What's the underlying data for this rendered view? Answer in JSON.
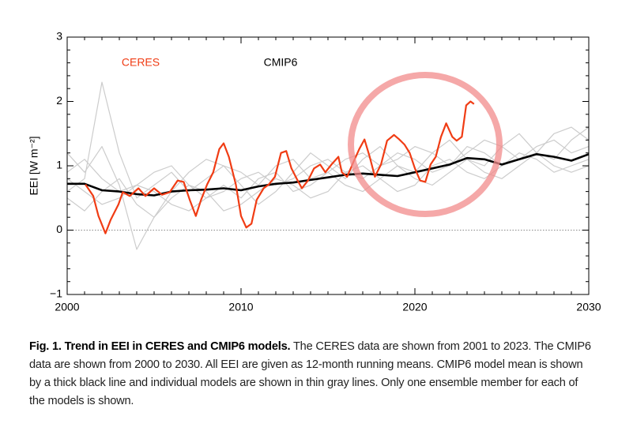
{
  "chart_data": {
    "type": "line",
    "ylabel": "EEI [W m⁻²]",
    "xlim": [
      2000,
      2030
    ],
    "xticks": [
      2000,
      2010,
      2020,
      2030
    ],
    "ylim": [
      -1,
      3
    ],
    "yticks": [
      {
        "value": -1,
        "label": "−1"
      },
      0,
      1,
      2,
      3
    ],
    "zero_line": true,
    "series": [
      {
        "name": "CERES",
        "color": "#f03c14",
        "x": [
          2001.05,
          2001.5,
          2001.8,
          2002.2,
          2002.5,
          2002.95,
          2003.2,
          2003.6,
          2004.1,
          2004.5,
          2005.0,
          2005.45,
          2005.9,
          2006.35,
          2006.7,
          2007.05,
          2007.4,
          2007.7,
          2008.05,
          2008.4,
          2008.75,
          2009.0,
          2009.3,
          2009.7,
          2010.0,
          2010.3,
          2010.6,
          2010.9,
          2011.3,
          2011.6,
          2011.95,
          2012.3,
          2012.6,
          2012.9,
          2013.2,
          2013.5,
          2013.85,
          2014.2,
          2014.55,
          2014.85,
          2015.2,
          2015.6,
          2015.8,
          2016.1,
          2016.5,
          2016.8,
          2017.1,
          2017.4,
          2017.7,
          2018.05,
          2018.4,
          2018.8,
          2019.1,
          2019.4,
          2019.7,
          2020.0,
          2020.3,
          2020.6,
          2020.9,
          2021.2,
          2021.5,
          2021.8,
          2022.15,
          2022.4,
          2022.7,
          2022.95,
          2023.2,
          2023.4
        ],
        "values": [
          0.71,
          0.53,
          0.22,
          -0.05,
          0.16,
          0.4,
          0.59,
          0.53,
          0.65,
          0.53,
          0.65,
          0.55,
          0.59,
          0.77,
          0.75,
          0.47,
          0.22,
          0.47,
          0.71,
          0.9,
          1.26,
          1.35,
          1.14,
          0.71,
          0.22,
          0.04,
          0.1,
          0.47,
          0.65,
          0.71,
          0.83,
          1.2,
          1.23,
          0.96,
          0.8,
          0.65,
          0.77,
          0.96,
          1.02,
          0.9,
          1.02,
          1.14,
          0.9,
          0.83,
          1.08,
          1.26,
          1.41,
          1.14,
          0.83,
          1.02,
          1.39,
          1.48,
          1.41,
          1.33,
          1.2,
          0.96,
          0.77,
          0.75,
          1.02,
          1.14,
          1.45,
          1.66,
          1.45,
          1.39,
          1.45,
          1.94,
          2.0,
          1.96
        ]
      },
      {
        "name": "CMIP6",
        "color": "#000000",
        "x": [
          2000,
          2001,
          2002,
          2003,
          2004,
          2005,
          2006,
          2007,
          2008,
          2009,
          2010,
          2011,
          2012,
          2013,
          2014,
          2015,
          2016,
          2017,
          2018,
          2019,
          2020,
          2021,
          2022,
          2023,
          2024,
          2025,
          2026,
          2027,
          2028,
          2029,
          2030
        ],
        "values": [
          0.72,
          0.72,
          0.62,
          0.6,
          0.56,
          0.54,
          0.6,
          0.62,
          0.63,
          0.65,
          0.62,
          0.68,
          0.72,
          0.74,
          0.78,
          0.82,
          0.86,
          0.88,
          0.86,
          0.84,
          0.9,
          0.96,
          1.02,
          1.12,
          1.1,
          1.02,
          1.1,
          1.18,
          1.14,
          1.08,
          1.18
        ]
      }
    ],
    "models": {
      "color": "#cccccc",
      "x": [
        2000,
        2001,
        2002,
        2003,
        2004,
        2005,
        2006,
        2007,
        2008,
        2009,
        2010,
        2011,
        2012,
        2013,
        2014,
        2015,
        2016,
        2017,
        2018,
        2019,
        2020,
        2021,
        2022,
        2023,
        2024,
        2025,
        2026,
        2027,
        2028,
        2029,
        2030
      ],
      "values": [
        [
          0.9,
          1.1,
          0.8,
          0.6,
          0.7,
          0.9,
          1.0,
          0.7,
          0.5,
          0.6,
          0.8,
          0.9,
          0.7,
          0.8,
          1.0,
          1.1,
          0.9,
          0.8,
          1.0,
          1.2,
          1.1,
          0.9,
          1.0,
          1.3,
          1.2,
          1.0,
          1.1,
          1.3,
          1.4,
          1.2,
          1.3
        ],
        [
          0.5,
          0.3,
          0.6,
          0.8,
          0.4,
          0.2,
          0.5,
          0.7,
          0.6,
          0.3,
          0.4,
          0.6,
          0.8,
          0.7,
          0.5,
          0.6,
          0.9,
          1.0,
          0.8,
          0.6,
          0.7,
          1.0,
          1.1,
          0.9,
          0.8,
          1.0,
          1.2,
          1.1,
          0.9,
          1.0,
          1.1
        ],
        [
          1.2,
          0.9,
          1.3,
          0.7,
          -0.3,
          0.2,
          0.6,
          0.9,
          1.1,
          1.0,
          0.7,
          0.4,
          0.6,
          0.9,
          1.2,
          1.0,
          0.8,
          1.1,
          1.3,
          1.0,
          0.9,
          1.2,
          1.4,
          1.1,
          1.0,
          1.3,
          1.5,
          1.2,
          1.1,
          1.4,
          1.6
        ],
        [
          0.6,
          0.8,
          2.3,
          1.2,
          0.5,
          0.7,
          0.9,
          0.6,
          0.8,
          1.0,
          0.9,
          0.7,
          1.0,
          1.1,
          0.8,
          0.9,
          1.1,
          1.2,
          1.0,
          1.1,
          1.3,
          1.2,
          1.0,
          1.2,
          1.4,
          1.3,
          1.1,
          1.2,
          1.5,
          1.6,
          1.4
        ],
        [
          0.8,
          0.6,
          0.4,
          0.5,
          0.7,
          0.6,
          0.4,
          0.3,
          0.5,
          0.7,
          0.5,
          0.8,
          0.9,
          0.6,
          0.7,
          0.9,
          0.7,
          0.6,
          0.8,
          1.0,
          0.8,
          0.7,
          0.9,
          1.1,
          0.9,
          0.8,
          1.0,
          1.2,
          1.0,
          0.9,
          1.0
        ]
      ]
    }
  },
  "caption": {
    "label": "Fig. 1. Trend in EEI in CERES and CMIP6 models.",
    "text": "The CERES data are shown from 2001 to 2023. The CMIP6 data are shown from 2000 to 2030. All EEI are given as 12-month running means. CMIP6 model mean is shown by a thick black line and individual models are shown in thin gray lines. Only one ensemble member for each of the models is shown."
  }
}
